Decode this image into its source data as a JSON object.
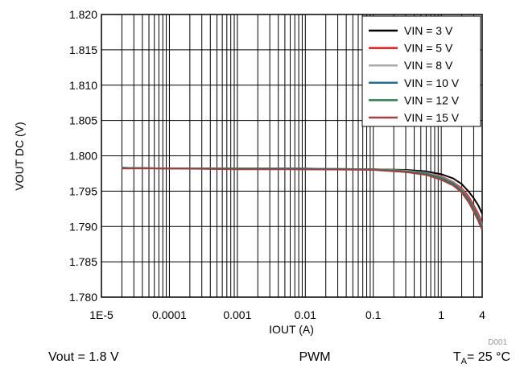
{
  "chart_data": {
    "type": "line",
    "xlabel": "IOUT (A)",
    "ylabel": "VOUT DC (V)",
    "xscale": "log",
    "xlim": [
      1e-05,
      4
    ],
    "ylim": [
      1.78,
      1.82
    ],
    "yticks": [
      "1.780",
      "1.785",
      "1.790",
      "1.795",
      "1.800",
      "1.805",
      "1.810",
      "1.815",
      "1.820"
    ],
    "xticks": [
      {
        "value": 1e-05,
        "label": "1E-5"
      },
      {
        "value": 0.0001,
        "label": "0.0001"
      },
      {
        "value": 0.001,
        "label": "0.001"
      },
      {
        "value": 0.01,
        "label": "0.01"
      },
      {
        "value": 0.1,
        "label": "0.1"
      },
      {
        "value": 1,
        "label": "1"
      },
      {
        "value": 4,
        "label": "4"
      }
    ],
    "grid": true,
    "legend_position": "top-right",
    "series": [
      {
        "name": "VIN = 3 V",
        "color": "#000000",
        "x": [
          2e-05,
          0.0001,
          0.001,
          0.01,
          0.1,
          0.3,
          0.6,
          1,
          1.5,
          2,
          2.5,
          3,
          3.5,
          4
        ],
        "y": [
          1.7983,
          1.7982,
          1.7982,
          1.7982,
          1.7981,
          1.798,
          1.7978,
          1.7974,
          1.7968,
          1.796,
          1.795,
          1.794,
          1.793,
          1.7918
        ]
      },
      {
        "name": "VIN = 5 V",
        "color": "#e31a1c",
        "x": [
          2e-05,
          0.0001,
          0.001,
          0.01,
          0.1,
          0.3,
          0.6,
          1,
          1.5,
          2,
          2.5,
          3,
          3.5,
          4
        ],
        "y": [
          1.7983,
          1.7982,
          1.7982,
          1.7981,
          1.7981,
          1.7979,
          1.7976,
          1.7971,
          1.7963,
          1.7954,
          1.7943,
          1.793,
          1.7918,
          1.7905
        ]
      },
      {
        "name": "VIN = 8 V",
        "color": "#aaaaaa",
        "x": [
          2e-05,
          0.0001,
          0.001,
          0.01,
          0.1,
          0.3,
          0.6,
          1,
          1.5,
          2,
          2.5,
          3,
          3.5,
          4
        ],
        "y": [
          1.7983,
          1.7982,
          1.7982,
          1.7982,
          1.7981,
          1.7979,
          1.7976,
          1.797,
          1.7962,
          1.7952,
          1.794,
          1.7927,
          1.7914,
          1.7902
        ]
      },
      {
        "name": "VIN = 10 V",
        "color": "#2b6c8f",
        "x": [
          2e-05,
          0.0001,
          0.001,
          0.01,
          0.1,
          0.3,
          0.6,
          1,
          1.5,
          2,
          2.5,
          3,
          3.5,
          4
        ],
        "y": [
          1.7983,
          1.7982,
          1.7982,
          1.7982,
          1.7981,
          1.7978,
          1.7975,
          1.7969,
          1.7961,
          1.7951,
          1.7939,
          1.7926,
          1.7913,
          1.79
        ]
      },
      {
        "name": "VIN = 12 V",
        "color": "#2e7d4f",
        "x": [
          2e-05,
          0.0001,
          0.001,
          0.01,
          0.1,
          0.3,
          0.6,
          1,
          1.5,
          2,
          2.5,
          3,
          3.5,
          4
        ],
        "y": [
          1.7983,
          1.7982,
          1.7982,
          1.7981,
          1.7981,
          1.7978,
          1.7974,
          1.7968,
          1.796,
          1.795,
          1.7937,
          1.7924,
          1.791,
          1.7898
        ]
      },
      {
        "name": "VIN = 15 V",
        "color": "#a04040",
        "x": [
          2e-05,
          0.0001,
          0.001,
          0.01,
          0.1,
          0.3,
          0.6,
          1,
          1.5,
          2,
          2.5,
          3,
          3.5,
          4
        ],
        "y": [
          1.7982,
          1.7982,
          1.7981,
          1.7981,
          1.798,
          1.7977,
          1.7973,
          1.7966,
          1.7958,
          1.7948,
          1.7935,
          1.7921,
          1.7908,
          1.7895
        ]
      }
    ]
  },
  "footer": {
    "left": "Vout = 1.8 V",
    "center": "PWM",
    "right_prefix": "T",
    "right_sub": "A",
    "right_suffix": "= 25 °C",
    "doc_id": "D001"
  }
}
